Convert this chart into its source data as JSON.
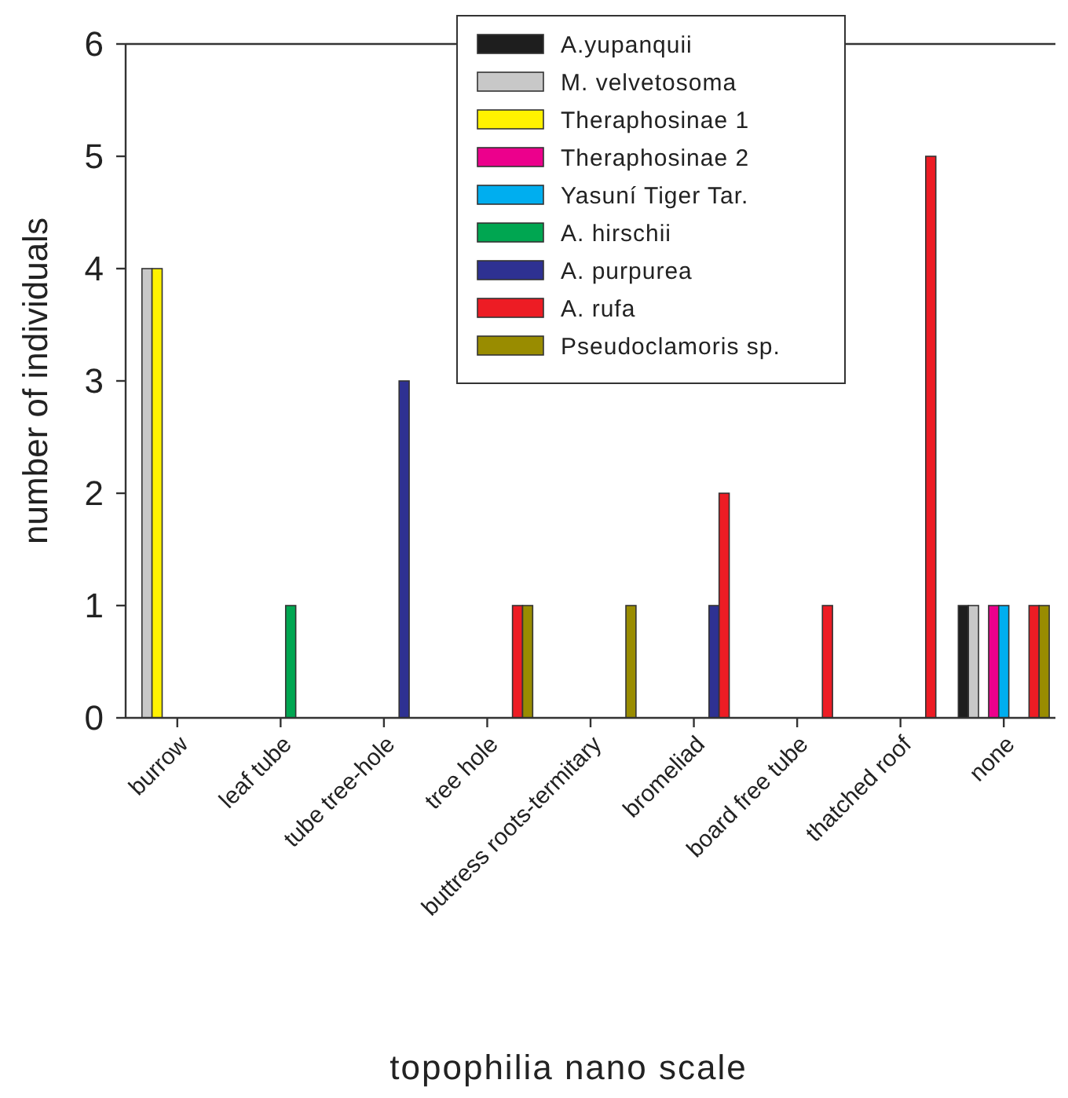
{
  "chart_data": {
    "type": "bar",
    "xlabel": "topophilia nano scale",
    "ylabel": "number of individuals",
    "categories": [
      "burrow",
      "leaf tube",
      "tube tree-hole",
      "tree hole",
      "buttress roots-termitary",
      "bromeliad",
      "board free tube",
      "thatched roof",
      "none"
    ],
    "series": [
      {
        "name": "A.yupanquii",
        "color": "#1e1e1e",
        "values": [
          0,
          0,
          0,
          0,
          0,
          0,
          0,
          0,
          1
        ]
      },
      {
        "name": "M. velvetosoma",
        "color": "#c8c8c8",
        "values": [
          4,
          0,
          0,
          0,
          0,
          0,
          0,
          0,
          1
        ]
      },
      {
        "name": "Theraphosinae 1",
        "color": "#fff200",
        "values": [
          4,
          0,
          0,
          0,
          0,
          0,
          0,
          0,
          0
        ]
      },
      {
        "name": "Theraphosinae 2",
        "color": "#ec008c",
        "values": [
          0,
          0,
          0,
          0,
          0,
          0,
          0,
          0,
          1
        ]
      },
      {
        "name": "Yasuní Tiger Tar.",
        "color": "#00aeef",
        "values": [
          0,
          0,
          0,
          0,
          0,
          0,
          0,
          0,
          1
        ]
      },
      {
        "name": "A. hirschii",
        "color": "#00a651",
        "values": [
          0,
          1,
          0,
          0,
          0,
          0,
          0,
          0,
          0
        ]
      },
      {
        "name": "A. purpurea",
        "color": "#2e3192",
        "values": [
          0,
          0,
          3,
          0,
          0,
          1,
          0,
          0,
          0
        ]
      },
      {
        "name": "A. rufa",
        "color": "#ed1c24",
        "values": [
          0,
          0,
          0,
          1,
          0,
          2,
          1,
          5,
          1
        ]
      },
      {
        "name": "Pseudoclamoris sp.",
        "color": "#998c00",
        "values": [
          0,
          0,
          0,
          1,
          1,
          0,
          0,
          0,
          1
        ]
      }
    ],
    "ylim": [
      0,
      6
    ],
    "yticks": [
      0,
      1,
      2,
      3,
      4,
      5,
      6
    ],
    "grid": false,
    "legend": "top"
  }
}
